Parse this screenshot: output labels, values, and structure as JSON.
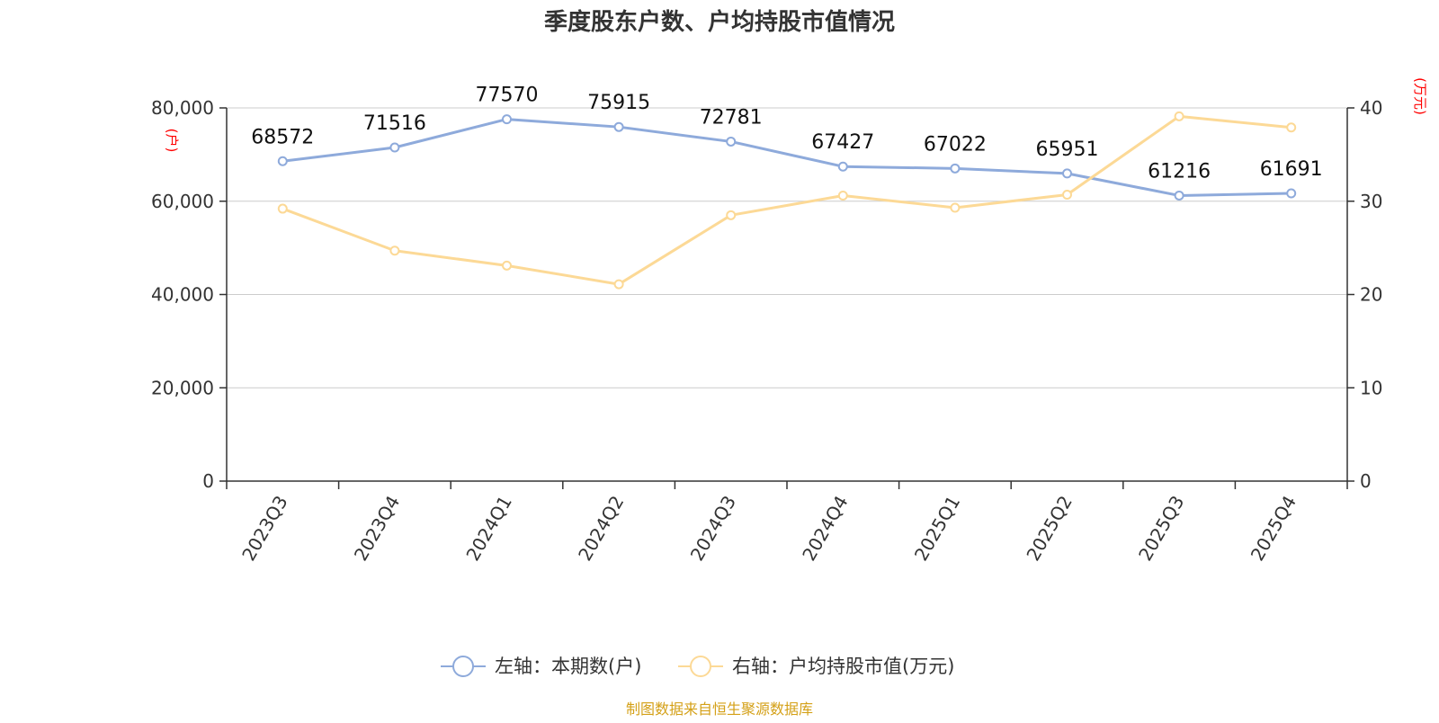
{
  "chart_data": {
    "type": "line",
    "title": "季度股东户数、户均持股市值情况",
    "categories": [
      "2023Q3",
      "2023Q4",
      "2024Q1",
      "2024Q2",
      "2024Q3",
      "2024Q4",
      "2025Q1",
      "2025Q2",
      "2025Q3",
      "2025Q4"
    ],
    "series": [
      {
        "name": "左轴：本期数(户)",
        "axis": "left",
        "color": "#8eaadb",
        "values": [
          68572,
          71516,
          77570,
          75915,
          72781,
          67427,
          67022,
          65951,
          61216,
          61691
        ],
        "data_labels": [
          "68572",
          "71516",
          "77570",
          "75915",
          "72781",
          "67427",
          "67022",
          "65951",
          "61216",
          "61691"
        ]
      },
      {
        "name": "右轴：户均持股市值(万元)",
        "axis": "right",
        "color": "#fcd996",
        "values": [
          29.2,
          24.7,
          23.1,
          21.1,
          28.5,
          30.6,
          29.3,
          30.7,
          39.1,
          37.9
        ]
      }
    ],
    "left_axis": {
      "unit_label": "(户)",
      "ylim": [
        0,
        80000
      ],
      "tick_labels": [
        "0",
        "20,000",
        "40,000",
        "60,000",
        "80,000"
      ]
    },
    "right_axis": {
      "unit_label": "(万元)",
      "ylim": [
        0,
        40
      ],
      "tick_labels": [
        "0",
        "10",
        "20",
        "30",
        "40"
      ]
    },
    "grid": true,
    "legend_position": "bottom-center",
    "source": "制图数据来自恒生聚源数据库",
    "source_color": "#d4a017"
  }
}
